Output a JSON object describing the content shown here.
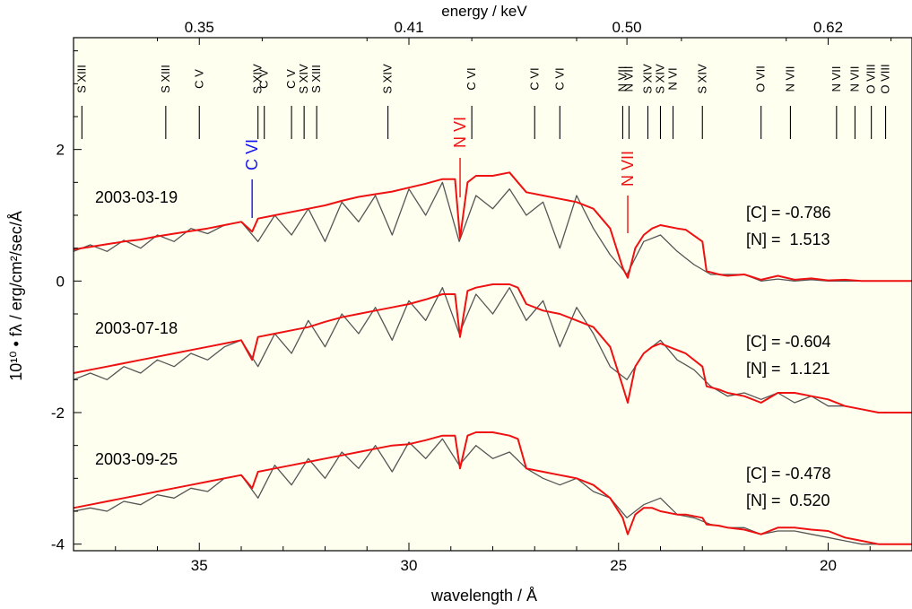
{
  "chart_data": {
    "type": "line",
    "xlabel": "wavelength / Å",
    "ylabel": "10¹⁰ • fλ / erg/cm²/sec/Å",
    "top_axis_label": "energy / keV",
    "xlim": [
      38,
      18
    ],
    "ylim": [
      -4.1,
      3.7
    ],
    "x_ticks_labeled": [
      "35",
      "30",
      "25",
      "20"
    ],
    "y_ticks_labeled": [
      "2",
      "0",
      "-2",
      "-4"
    ],
    "top_ticks": [
      {
        "label": "0.35",
        "wavelength": 35.0
      },
      {
        "label": "0.41",
        "wavelength": 30.0
      },
      {
        "label": "0.50",
        "wavelength": 24.8
      },
      {
        "label": "0.62",
        "wavelength": 20.0
      }
    ],
    "colors": {
      "observation": "#555555",
      "model": "#ee1111",
      "carbon_mark": "#1111ee",
      "background": "#fffff0"
    },
    "line_ids_black": [
      {
        "label": "S XIII",
        "x": 37.8
      },
      {
        "label": "S XIII",
        "x": 35.8
      },
      {
        "label": "C V",
        "x": 35.0
      },
      {
        "label": "S XIV",
        "x": 33.6
      },
      {
        "label": "C V",
        "x": 33.45
      },
      {
        "label": "C V",
        "x": 32.8
      },
      {
        "label": "S XIV",
        "x": 32.5
      },
      {
        "label": "S XIII",
        "x": 32.2
      },
      {
        "label": "S XIV",
        "x": 30.5
      },
      {
        "label": "C VI",
        "x": 28.5
      },
      {
        "label": "C VI",
        "x": 27.0
      },
      {
        "label": "C VI",
        "x": 26.4
      },
      {
        "label": "N VII",
        "x": 24.9
      },
      {
        "label": "N VII",
        "x": 24.75
      },
      {
        "label": "S XIV",
        "x": 24.3
      },
      {
        "label": "S XIV",
        "x": 24.0
      },
      {
        "label": "N VI",
        "x": 23.7
      },
      {
        "label": "S XIV",
        "x": 23.0
      },
      {
        "label": "O VII",
        "x": 21.6
      },
      {
        "label": "N VII",
        "x": 20.9
      },
      {
        "label": "N VII",
        "x": 19.8
      },
      {
        "label": "N VII",
        "x": 19.36
      },
      {
        "label": "O VIII",
        "x": 18.97
      },
      {
        "label": "O VIII",
        "x": 18.63
      }
    ],
    "line_ids_colored": [
      {
        "label": "C VI",
        "x": 33.74,
        "color": "#1111ee"
      },
      {
        "label": "N VI",
        "x": 28.78,
        "color": "#ee1111"
      },
      {
        "label": "N VII",
        "x": 24.78,
        "color": "#ee1111"
      }
    ],
    "epochs": [
      {
        "date": "2003-03-19",
        "offset": 0,
        "c_label": "[C] = -0.786",
        "n_label": "[N] =  1.513"
      },
      {
        "date": "2003-07-18",
        "offset": -2,
        "c_label": "[C] = -0.604",
        "n_label": "[N] =  1.121"
      },
      {
        "date": "2003-09-25",
        "offset": -4,
        "c_label": "[C] = -0.478",
        "n_label": "[N] =  0.520"
      }
    ],
    "series": [
      {
        "color": "#555555",
        "x": [
          38,
          37.6,
          37.2,
          36.8,
          36.4,
          36,
          35.6,
          35.2,
          34.8,
          34.4,
          34,
          33.6,
          33.2,
          32.8,
          32.4,
          32,
          31.6,
          31.2,
          30.8,
          30.4,
          30,
          29.6,
          29.2,
          28.8,
          28.4,
          28,
          27.6,
          27.2,
          26.8,
          26.4,
          26,
          25.6,
          25.2,
          24.8,
          24.4,
          24,
          23.6,
          23.2,
          22.8,
          22.4,
          22,
          21.6,
          21.2,
          20.8,
          20.4,
          20,
          19.6,
          19.2,
          18.8,
          18.4,
          18
        ],
        "epoch_values": [
          [
            0.45,
            0.55,
            0.45,
            0.62,
            0.5,
            0.7,
            0.6,
            0.8,
            0.72,
            0.85,
            0.9,
            0.6,
            1.0,
            0.7,
            1.1,
            0.6,
            1.2,
            0.9,
            1.3,
            0.7,
            1.4,
            1.0,
            1.5,
            0.6,
            1.3,
            1.1,
            1.4,
            1.0,
            1.2,
            0.5,
            1.3,
            0.8,
            0.4,
            0.1,
            0.6,
            0.7,
            0.45,
            0.25,
            0.1,
            0.1,
            0.1,
            0.0,
            0.03,
            0.0,
            0.02,
            0.0,
            0.0,
            0.0,
            0.0,
            0.0,
            0.0
          ],
          [
            -1.5,
            -1.4,
            -1.5,
            -1.3,
            -1.4,
            -1.2,
            -1.3,
            -1.1,
            -1.2,
            -1.0,
            -0.9,
            -1.3,
            -0.8,
            -1.1,
            -0.6,
            -1.0,
            -0.5,
            -0.8,
            -0.4,
            -0.9,
            -0.3,
            -0.6,
            -0.1,
            -0.8,
            -0.2,
            -0.5,
            -0.1,
            -0.6,
            -0.3,
            -1.0,
            -0.4,
            -0.8,
            -1.3,
            -1.5,
            -1.1,
            -0.9,
            -1.2,
            -1.35,
            -1.6,
            -1.75,
            -1.7,
            -1.8,
            -1.7,
            -1.85,
            -1.75,
            -1.9,
            -1.9,
            -1.95,
            -2.0,
            -2.0,
            -2.0
          ],
          [
            -3.5,
            -3.45,
            -3.5,
            -3.35,
            -3.4,
            -3.25,
            -3.3,
            -3.15,
            -3.2,
            -3.0,
            -2.95,
            -3.3,
            -2.8,
            -3.1,
            -2.7,
            -3.0,
            -2.6,
            -2.85,
            -2.5,
            -2.9,
            -2.45,
            -2.7,
            -2.4,
            -2.8,
            -2.5,
            -2.7,
            -2.6,
            -2.85,
            -3.0,
            -3.1,
            -3.0,
            -3.2,
            -3.3,
            -3.6,
            -3.4,
            -3.3,
            -3.55,
            -3.6,
            -3.7,
            -3.75,
            -3.75,
            -3.85,
            -3.8,
            -3.8,
            -3.85,
            -3.9,
            -3.95,
            -4.0,
            -4.0,
            -4.0,
            -4.0
          ]
        ]
      },
      {
        "color": "#ee1111",
        "x": [
          38,
          37.6,
          37.2,
          36.8,
          36.4,
          36,
          35.6,
          35.2,
          34.8,
          34.4,
          34,
          33.74,
          33.6,
          33.2,
          32.8,
          32.4,
          32,
          31.6,
          31.2,
          30.8,
          30.4,
          30,
          29.6,
          29.2,
          28.9,
          28.78,
          28.6,
          28.4,
          28,
          27.6,
          27.4,
          27.2,
          26.8,
          26.4,
          26,
          25.6,
          25.2,
          24.9,
          24.78,
          24.6,
          24.4,
          24.2,
          24.0,
          23.6,
          23.4,
          23.0,
          22.9,
          22.6,
          22.4,
          22,
          21.6,
          21.2,
          20.8,
          20.4,
          20,
          19.6,
          19.2,
          18.8,
          18.4,
          18
        ],
        "epoch_values": [
          [
            0.48,
            0.52,
            0.56,
            0.6,
            0.63,
            0.68,
            0.72,
            0.76,
            0.8,
            0.85,
            0.9,
            0.75,
            0.95,
            1.0,
            1.05,
            1.1,
            1.15,
            1.22,
            1.28,
            1.32,
            1.36,
            1.42,
            1.48,
            1.55,
            1.55,
            0.65,
            1.5,
            1.6,
            1.6,
            1.65,
            1.5,
            1.35,
            1.3,
            1.25,
            1.2,
            1.1,
            0.8,
            0.2,
            0.05,
            0.5,
            0.7,
            0.8,
            0.85,
            0.8,
            0.78,
            0.6,
            0.15,
            0.1,
            0.08,
            0.1,
            0.02,
            0.08,
            0.02,
            0.04,
            0.01,
            0.02,
            0.0,
            0.0,
            0.0,
            0.0
          ],
          [
            -1.4,
            -1.35,
            -1.3,
            -1.25,
            -1.2,
            -1.15,
            -1.1,
            -1.05,
            -1.0,
            -0.95,
            -0.9,
            -1.2,
            -0.85,
            -0.8,
            -0.75,
            -0.7,
            -0.62,
            -0.55,
            -0.5,
            -0.45,
            -0.4,
            -0.35,
            -0.28,
            -0.2,
            -0.2,
            -0.85,
            -0.15,
            -0.1,
            -0.05,
            -0.05,
            -0.1,
            -0.35,
            -0.45,
            -0.5,
            -0.6,
            -0.7,
            -1.0,
            -1.6,
            -1.85,
            -1.3,
            -1.1,
            -1.0,
            -0.95,
            -1.05,
            -1.1,
            -1.3,
            -1.6,
            -1.65,
            -1.7,
            -1.75,
            -1.85,
            -1.7,
            -1.7,
            -1.75,
            -1.8,
            -1.9,
            -1.95,
            -2.0,
            -2.0,
            -2.0
          ],
          [
            -3.45,
            -3.4,
            -3.35,
            -3.3,
            -3.25,
            -3.2,
            -3.15,
            -3.1,
            -3.05,
            -3.0,
            -2.95,
            -3.15,
            -2.9,
            -2.85,
            -2.8,
            -2.75,
            -2.7,
            -2.65,
            -2.6,
            -2.55,
            -2.5,
            -2.48,
            -2.42,
            -2.35,
            -2.35,
            -2.85,
            -2.35,
            -2.3,
            -2.3,
            -2.35,
            -2.4,
            -2.85,
            -2.9,
            -2.95,
            -3.0,
            -3.1,
            -3.3,
            -3.6,
            -3.85,
            -3.55,
            -3.45,
            -3.45,
            -3.5,
            -3.55,
            -3.55,
            -3.6,
            -3.7,
            -3.72,
            -3.75,
            -3.78,
            -3.85,
            -3.75,
            -3.75,
            -3.78,
            -3.8,
            -3.9,
            -3.95,
            -4.0,
            -4.0,
            -4.0
          ]
        ]
      }
    ]
  }
}
